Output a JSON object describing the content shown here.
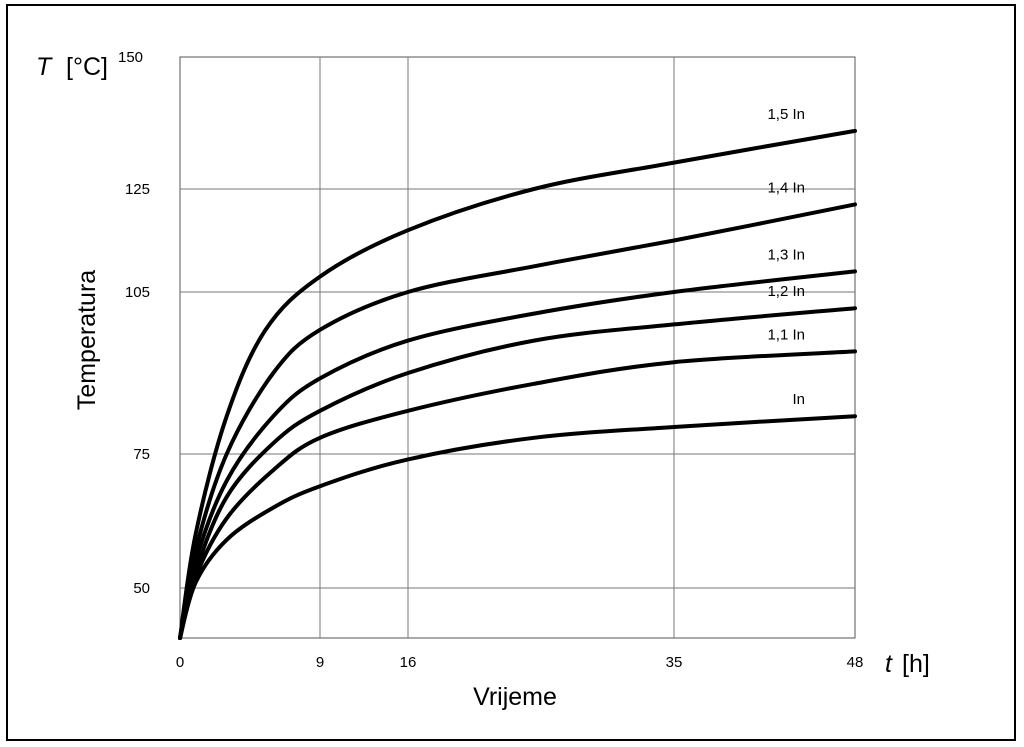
{
  "chart_data": {
    "type": "line",
    "x_unit_symbol": "t",
    "x_unit": "[h]",
    "y_unit_symbol": "T",
    "y_unit": "[°C]",
    "xlabel": "Vrijeme",
    "ylabel": "Temperatura",
    "x_ticks": [
      "0",
      "9",
      "16",
      "35",
      "48"
    ],
    "x_tick_values": [
      0,
      9,
      16,
      35,
      48
    ],
    "y_ticks": [
      "50",
      "75",
      "105",
      "125",
      "150"
    ],
    "y_tick_values": [
      50,
      75,
      105,
      125,
      150
    ],
    "y_scale": "non-uniform (tick positions: 50, 75, 105, 125, 150)",
    "grid": true,
    "line_color": "#000000",
    "series": [
      {
        "name": "1,5 In",
        "points": [
          [
            0,
            42
          ],
          [
            1,
            60
          ],
          [
            3,
            82
          ],
          [
            5.5,
            98
          ],
          [
            9,
            108
          ],
          [
            16,
            117
          ],
          [
            25,
            125
          ],
          [
            35,
            130
          ],
          [
            48,
            136
          ]
        ]
      },
      {
        "name": "1,4 In",
        "points": [
          [
            0,
            42
          ],
          [
            1,
            57
          ],
          [
            3,
            75
          ],
          [
            6,
            90
          ],
          [
            9,
            98
          ],
          [
            16,
            105
          ],
          [
            25,
            110
          ],
          [
            35,
            115
          ],
          [
            48,
            122
          ]
        ]
      },
      {
        "name": "1,3 In",
        "points": [
          [
            0,
            42
          ],
          [
            1,
            55
          ],
          [
            3,
            70
          ],
          [
            6,
            82
          ],
          [
            9,
            89
          ],
          [
            16,
            96
          ],
          [
            25,
            101
          ],
          [
            35,
            105
          ],
          [
            48,
            109
          ]
        ]
      },
      {
        "name": "1,2 In",
        "points": [
          [
            0,
            42
          ],
          [
            1,
            53
          ],
          [
            3,
            67
          ],
          [
            6,
            77
          ],
          [
            9,
            83
          ],
          [
            16,
            90
          ],
          [
            25,
            96
          ],
          [
            35,
            99
          ],
          [
            48,
            102
          ]
        ]
      },
      {
        "name": "1,1 In",
        "points": [
          [
            0,
            42
          ],
          [
            1,
            52
          ],
          [
            3,
            63
          ],
          [
            6,
            72
          ],
          [
            9,
            78
          ],
          [
            16,
            83
          ],
          [
            25,
            88
          ],
          [
            35,
            92
          ],
          [
            48,
            94
          ]
        ]
      },
      {
        "name": "In",
        "points": [
          [
            0,
            42
          ],
          [
            1,
            51
          ],
          [
            3,
            59
          ],
          [
            6,
            65
          ],
          [
            9,
            69
          ],
          [
            16,
            74
          ],
          [
            25,
            78
          ],
          [
            35,
            80
          ],
          [
            48,
            82
          ]
        ]
      }
    ]
  }
}
